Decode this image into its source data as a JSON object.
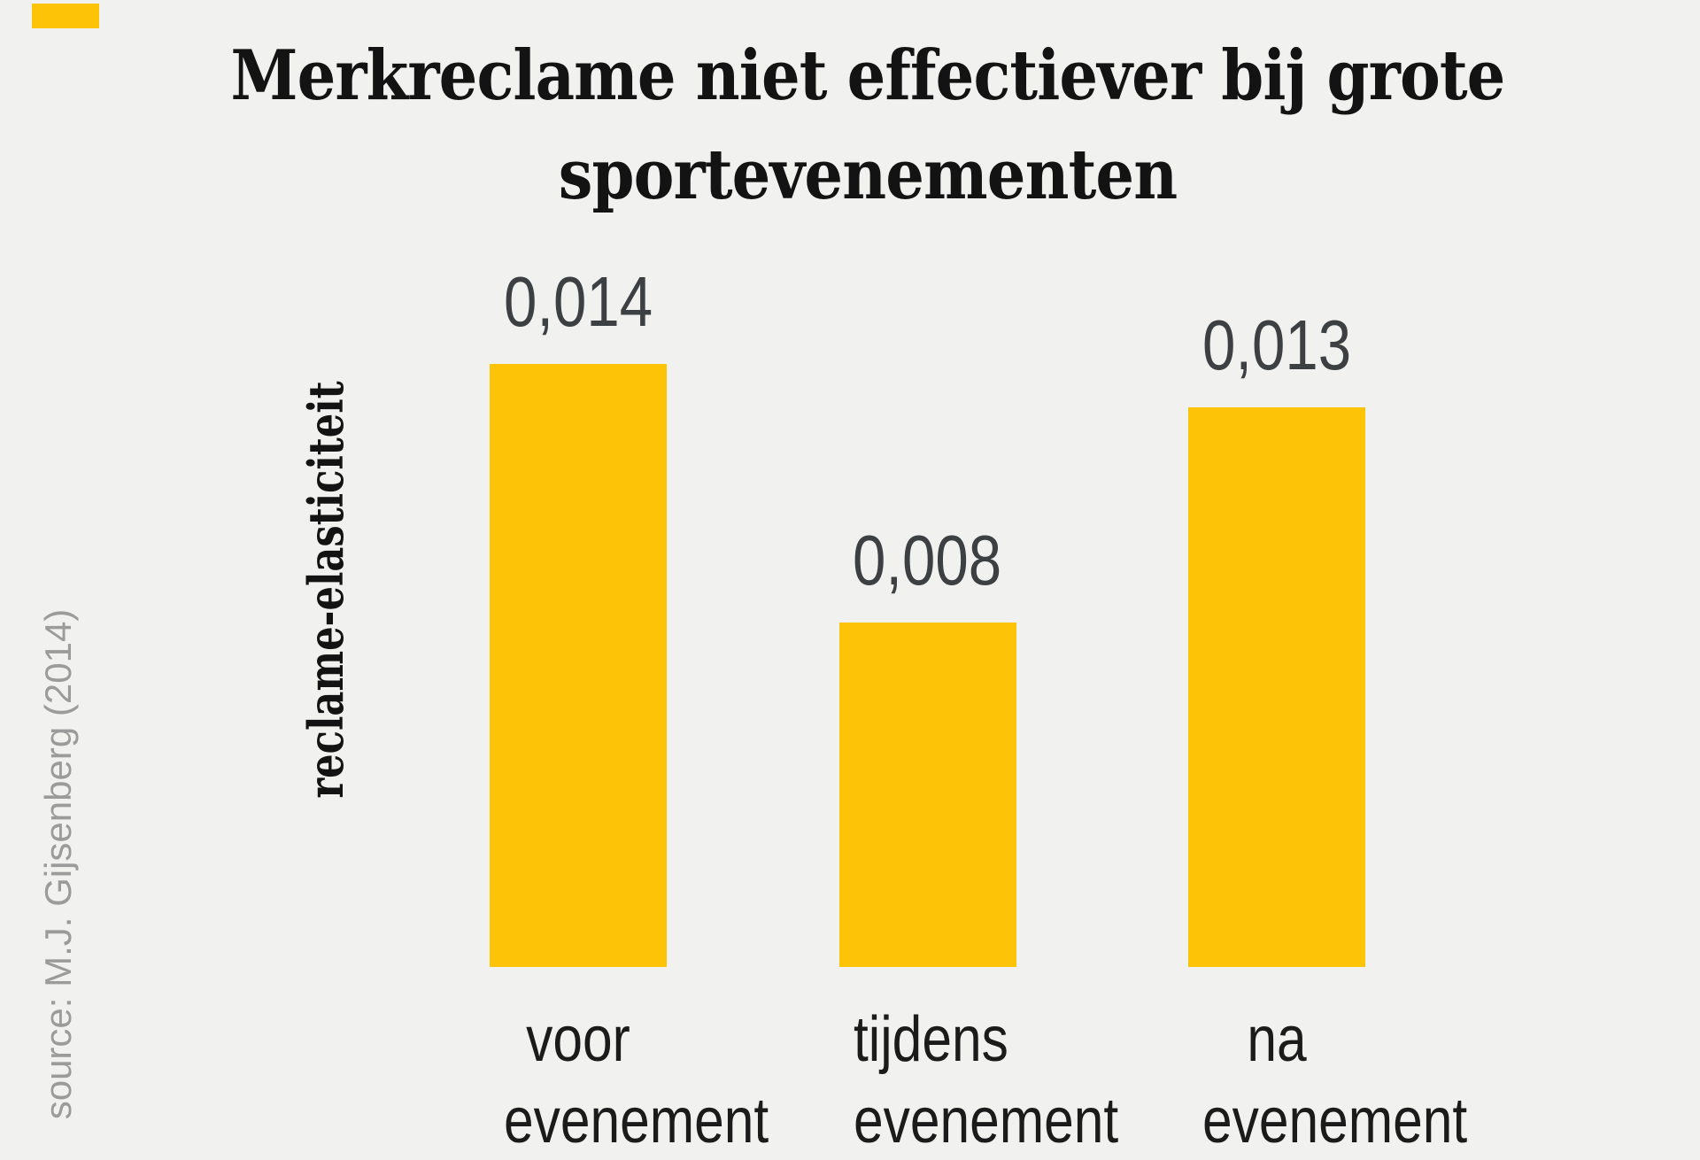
{
  "page": {
    "background": "#F1F1EF"
  },
  "brand": {
    "color": "#FDC307"
  },
  "title": {
    "line1": "Merkreclame niet effectiever bij grote",
    "line2": "sportevenementen"
  },
  "source": {
    "text": "source: M.J. Gijsenberg (2014)"
  },
  "chart_data": {
    "type": "bar",
    "title": "Merkreclame niet effectiever bij grote sportevenementen",
    "categories": [
      "voor evenement",
      "tijdens evenement",
      "na evenement"
    ],
    "categories_display": [
      {
        "line1": "voor",
        "line2": "evenement"
      },
      {
        "line1": "tijdens",
        "line2": "evenement"
      },
      {
        "line1": "na",
        "line2": "evenement"
      }
    ],
    "values": [
      0.014,
      0.008,
      0.013
    ],
    "value_labels": [
      "0,014",
      "0,008",
      "0,013"
    ],
    "xlabel": "",
    "ylabel": "reclame-elasticiteit",
    "ylim": [
      0,
      0.016
    ],
    "grid": false,
    "legend": false,
    "bar_color": "#FDC307",
    "value_label_color": "#3C4043",
    "category_label_color": "#1B1B1B",
    "title_color": "#131313",
    "source_color": "#9B9B9B"
  }
}
